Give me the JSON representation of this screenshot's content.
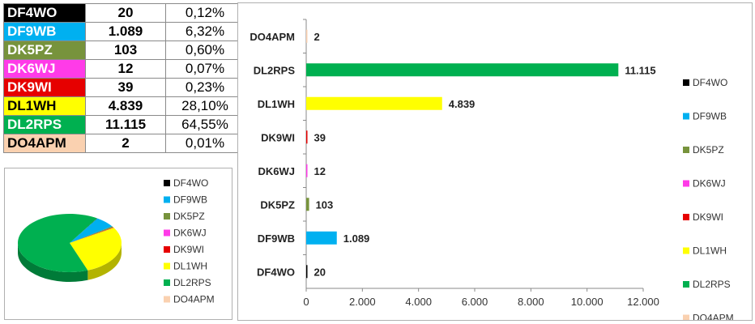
{
  "table": {
    "rows": [
      {
        "call": "DF4WO",
        "count": "20",
        "percent": "0,12%",
        "bg": "#000000",
        "fg": "#ffffff"
      },
      {
        "call": "DF9WB",
        "count": "1.089",
        "percent": "6,32%",
        "bg": "#00b0f0",
        "fg": "#ffffff"
      },
      {
        "call": "DK5PZ",
        "count": "103",
        "percent": "0,60%",
        "bg": "#77933c",
        "fg": "#ffffff"
      },
      {
        "call": "DK6WJ",
        "count": "12",
        "percent": "0,07%",
        "bg": "#ff3be8",
        "fg": "#ffffff"
      },
      {
        "call": "DK9WI",
        "count": "39",
        "percent": "0,23%",
        "bg": "#e60000",
        "fg": "#ffffff"
      },
      {
        "call": "DL1WH",
        "count": "4.839",
        "percent": "28,10%",
        "bg": "#ffff00",
        "fg": "#000000"
      },
      {
        "call": "DL2RPS",
        "count": "11.115",
        "percent": "64,55%",
        "bg": "#00b050",
        "fg": "#ffffff"
      },
      {
        "call": "DO4APM",
        "count": "2",
        "percent": "0,01%",
        "bg": "#fad1b0",
        "fg": "#000000"
      }
    ]
  },
  "chart_data": [
    {
      "type": "pie",
      "style": "3d",
      "categories": [
        "DF4WO",
        "DF9WB",
        "DK5PZ",
        "DK6WJ",
        "DK9WI",
        "DL1WH",
        "DL2RPS",
        "DO4APM"
      ],
      "values": [
        20,
        1089,
        103,
        12,
        39,
        4839,
        11115,
        2
      ],
      "colors": [
        "#000000",
        "#00b0f0",
        "#77933c",
        "#ff3be8",
        "#e60000",
        "#ffff00",
        "#00b050",
        "#fad1b0"
      ],
      "legend": "right",
      "title": ""
    },
    {
      "type": "bar",
      "orientation": "horizontal",
      "categories": [
        "DF4WO",
        "DF9WB",
        "DK5PZ",
        "DK6WJ",
        "DK9WI",
        "DL1WH",
        "DL2RPS",
        "DO4APM"
      ],
      "values": [
        20,
        1089,
        103,
        12,
        39,
        4839,
        11115,
        2
      ],
      "value_labels": [
        "20",
        "1.089",
        "103",
        "12",
        "39",
        "4.839",
        "11.115",
        "2"
      ],
      "colors": [
        "#000000",
        "#00b0f0",
        "#77933c",
        "#ff3be8",
        "#e60000",
        "#ffff00",
        "#00b050",
        "#fad1b0"
      ],
      "xlim": [
        0,
        12000
      ],
      "xticks": [
        0,
        2000,
        4000,
        6000,
        8000,
        10000,
        12000
      ],
      "xtick_labels": [
        "0",
        "2.000",
        "4.000",
        "6.000",
        "8.000",
        "10.000",
        "12.000"
      ],
      "grid": false,
      "legend": "right",
      "title": "",
      "xlabel": "",
      "ylabel": ""
    }
  ]
}
